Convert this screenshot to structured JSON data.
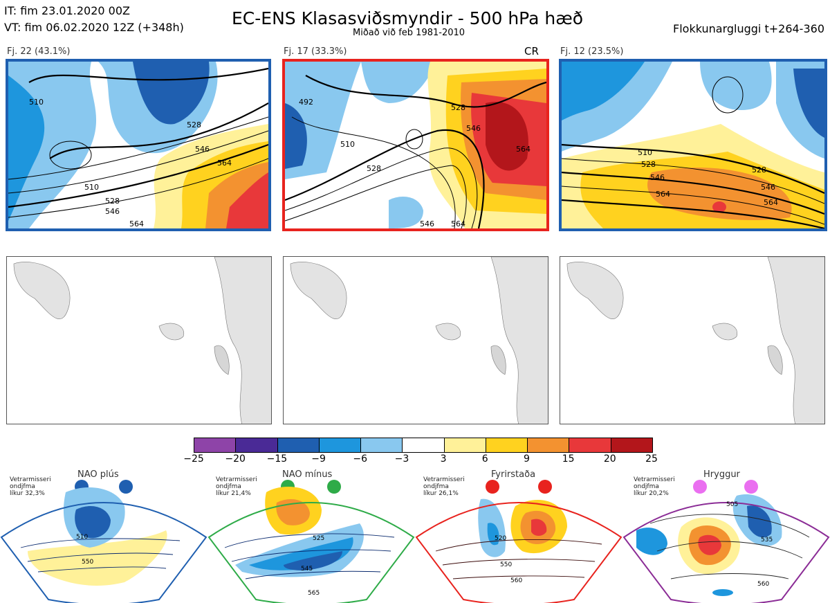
{
  "header": {
    "it_line": "IT: fim 23.01.2020 00Z",
    "vt_line": "VT: fim 06.02.2020 12Z  (+348h)",
    "title": "EC-ENS Klasasviðsmyndir - 500 hPa hæð",
    "subtitle": "Miðað við feb 1981-2010",
    "window": "Flokkunargluggi t+264-360"
  },
  "panels": [
    {
      "label": "Fj. 22 (43.1%)",
      "tag": "",
      "border": "#1f5fb0",
      "contours": [
        "510",
        "528",
        "546",
        "564",
        "510",
        "528",
        "546",
        "564"
      ]
    },
    {
      "label": "Fj. 17 (33.3%)",
      "tag": "CR",
      "border": "#e8231e",
      "contours": [
        "492",
        "510",
        "528",
        "546",
        "564",
        "528",
        "546",
        "564"
      ]
    },
    {
      "label": "Fj. 12 (23.5%)",
      "tag": "",
      "border": "#1f5fb0",
      "contours": [
        "510",
        "528",
        "546",
        "564",
        "528",
        "546",
        "564"
      ]
    }
  ],
  "colorbar": {
    "ticks": [
      "−25",
      "−20",
      "−15",
      "−9",
      "−6",
      "−3",
      "3",
      "6",
      "9",
      "15",
      "20",
      "25"
    ],
    "colors": [
      "#8e44a8",
      "#4a2a96",
      "#1f5fb0",
      "#1e96dd",
      "#89c8ef",
      "#ffffff",
      "#fff199",
      "#ffd21f",
      "#f39230",
      "#e8383a",
      "#b3161b"
    ]
  },
  "regimes": [
    {
      "name": "NAO plús",
      "note": [
        "Vetrarmisseri",
        "ondjfma",
        "líkur 32,3%"
      ],
      "border": "#1f5fb0",
      "dot": "#1f5fb0",
      "contours": [
        "510",
        "550"
      ]
    },
    {
      "name": "NAO mínus",
      "note": [
        "Vetrarmisseri",
        "ondjfma",
        "líkur 21,4%"
      ],
      "border": "#2eab48",
      "dot": "#2eab48",
      "contours": [
        "525",
        "545",
        "565"
      ]
    },
    {
      "name": "Fyrirstaða",
      "note": [
        "Vetrarmisseri",
        "ondjfma",
        "líkur 26,1%"
      ],
      "border": "#e8231e",
      "dot": "#e8231e",
      "contours": [
        "520",
        "550",
        "560"
      ]
    },
    {
      "name": "Hryggur",
      "note": [
        "Vetrarmisseri",
        "ondjfma",
        "líkur 20,2%"
      ],
      "border": "#8b2c96",
      "dot": "#ea6ff0",
      "contours": [
        "505",
        "535",
        "560"
      ]
    }
  ]
}
